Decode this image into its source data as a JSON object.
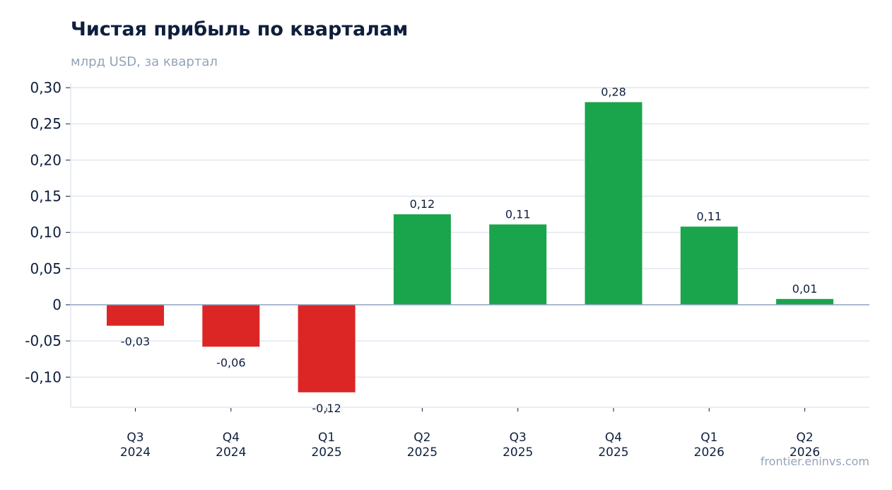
{
  "header": {
    "title": "Чистая прибыль по кварталам",
    "subtitle": "млрд USD, за квартал"
  },
  "footer": {
    "watermark": "frontier.eninvs.com"
  },
  "colors": {
    "positive": "#1aa44c",
    "negative": "#dc2626",
    "grid": "#e2e6ef",
    "zero_line": "#8fa3c0",
    "text": "#0f1e3d"
  },
  "chart_data": {
    "type": "bar",
    "title": "Чистая прибыль по кварталам",
    "subtitle": "млрд USD, за квартал",
    "categories": [
      [
        "Q3",
        "2024"
      ],
      [
        "Q4",
        "2024"
      ],
      [
        "Q1",
        "2025"
      ],
      [
        "Q2",
        "2025"
      ],
      [
        "Q3",
        "2025"
      ],
      [
        "Q4",
        "2025"
      ],
      [
        "Q1",
        "2026"
      ],
      [
        "Q2",
        "2026"
      ]
    ],
    "values": [
      -0.029,
      -0.058,
      -0.121,
      0.125,
      0.111,
      0.28,
      0.108,
      0.008
    ],
    "data_labels": [
      "-0,03",
      "-0,06",
      "-0,12",
      "0,12",
      "0,11",
      "0,28",
      "0,11",
      "0,01"
    ],
    "yticks": [
      0.3,
      0.25,
      0.2,
      0.15,
      0.1,
      0.05,
      0,
      -0.05,
      -0.1
    ],
    "ytick_labels": [
      "0,30",
      "0,25",
      "0,20",
      "0,15",
      "0,10",
      "0,05",
      "0",
      "-0,05",
      "-0,10"
    ],
    "ylim": [
      -0.142,
      0.3
    ],
    "grid": true,
    "legend": "none"
  }
}
